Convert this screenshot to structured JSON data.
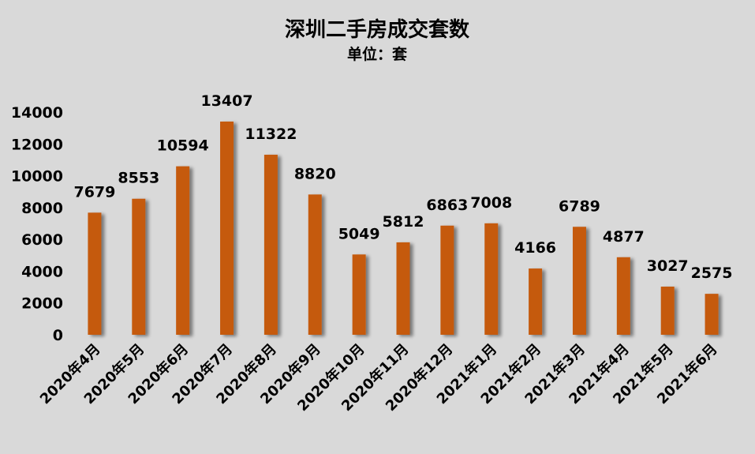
{
  "chart_data": {
    "type": "bar",
    "title": "深圳二手房成交套数",
    "subtitle": "单位：套",
    "categories": [
      "2020年4月",
      "2020年5月",
      "2020年6月",
      "2020年7月",
      "2020年8月",
      "2020年9月",
      "2020年10月",
      "2020年11月",
      "2020年12月",
      "2021年1月",
      "2021年2月",
      "2021年3月",
      "2021年4月",
      "2021年5月",
      "2021年6月"
    ],
    "values": [
      7679,
      8553,
      10594,
      13407,
      11322,
      8820,
      5049,
      5812,
      6863,
      7008,
      4166,
      6789,
      4877,
      3027,
      2575
    ],
    "y_ticks": [
      "0",
      "2000",
      "4000",
      "6000",
      "8000",
      "10000",
      "12000",
      "14000"
    ],
    "ylim": [
      0,
      14000
    ],
    "grid": false,
    "legend": "none",
    "bar_color": "#c55a11",
    "background_color": "#d9d9d9"
  }
}
